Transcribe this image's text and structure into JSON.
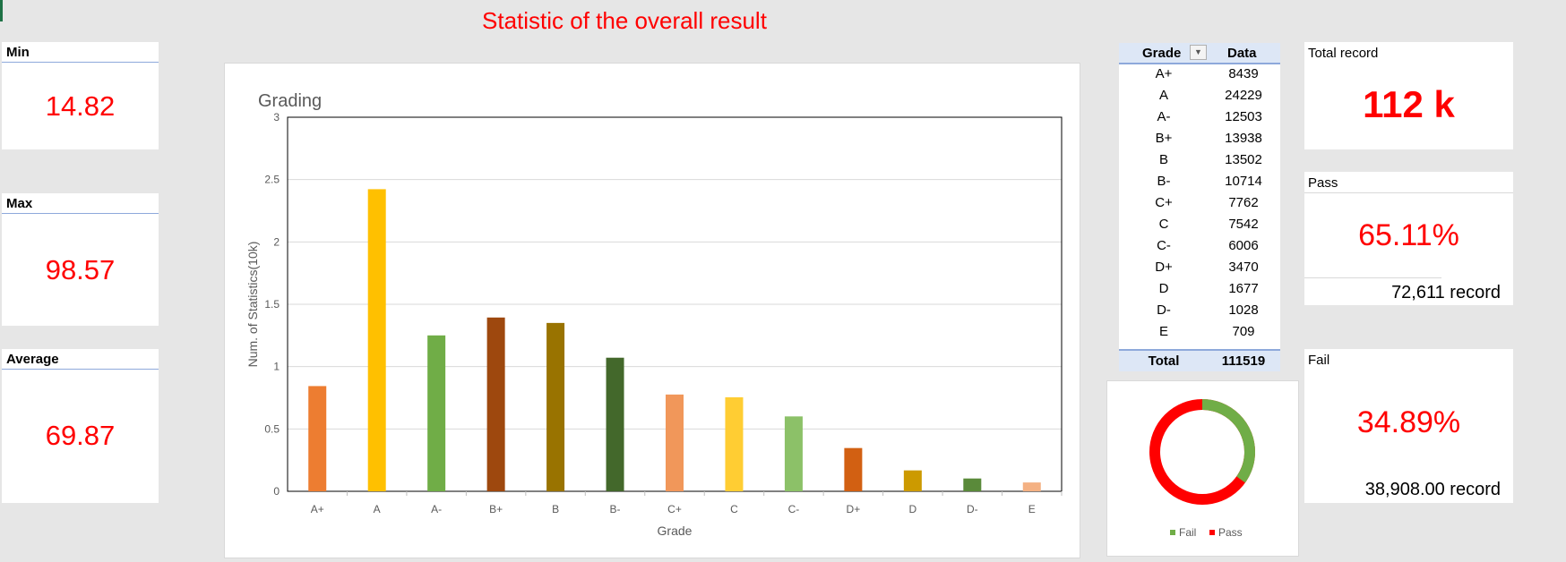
{
  "dashboard": {
    "title": "Statistic of the overall result"
  },
  "kpis": {
    "min": {
      "label": "Min",
      "value": "14.82"
    },
    "max": {
      "label": "Max",
      "value": "98.57"
    },
    "average": {
      "label": "Average",
      "value": "69.87"
    }
  },
  "chart_data": {
    "type": "bar",
    "title": "Grading",
    "xlabel": "Grade",
    "ylabel": "Num. of Statistics(10k)",
    "ylim": [
      0,
      3
    ],
    "yticks": [
      "0",
      "0.5",
      "1",
      "1.5",
      "2",
      "2.5",
      "3"
    ],
    "grid": true,
    "categories": [
      "A+",
      "A",
      "A-",
      "B+",
      "B",
      "B-",
      "C+",
      "C",
      "C-",
      "D+",
      "D",
      "D-",
      "E"
    ],
    "values": [
      0.8439,
      2.4229,
      1.2503,
      1.3938,
      1.3502,
      1.0714,
      0.7762,
      0.7542,
      0.6006,
      0.347,
      0.1677,
      0.1028,
      0.0709
    ],
    "colors": [
      "#ED7D31",
      "#FFC000",
      "#70AD47",
      "#9E480E",
      "#997300",
      "#43682B",
      "#F1975A",
      "#FFCD33",
      "#8CC168",
      "#D26012",
      "#CC9A00",
      "#5A8A3A",
      "#F4B183"
    ]
  },
  "grade_table": {
    "headers": {
      "grade": "Grade",
      "data": "Data"
    },
    "rows": [
      {
        "grade": "A+",
        "data": "8439"
      },
      {
        "grade": "A",
        "data": "24229"
      },
      {
        "grade": "A-",
        "data": "12503"
      },
      {
        "grade": "B+",
        "data": "13938"
      },
      {
        "grade": "B",
        "data": "13502"
      },
      {
        "grade": "B-",
        "data": "10714"
      },
      {
        "grade": "C+",
        "data": "7762"
      },
      {
        "grade": "C",
        "data": "7542"
      },
      {
        "grade": "C-",
        "data": "6006"
      },
      {
        "grade": "D+",
        "data": "3470"
      },
      {
        "grade": "D",
        "data": "1677"
      },
      {
        "grade": "D-",
        "data": "1028"
      },
      {
        "grade": "E",
        "data": "709"
      }
    ],
    "total": {
      "label": "Total",
      "value": "111519"
    },
    "filter_icon": "dropdown-arrow-icon"
  },
  "donut": {
    "fail_fraction": 0.3489,
    "pass_fraction": 0.6511,
    "fail_color": "#70AD47",
    "pass_color": "#FF0000",
    "legend": {
      "fail": "Fail",
      "pass": "Pass"
    }
  },
  "summary": {
    "total_record": {
      "label": "Total record",
      "value": "112 k"
    },
    "pass": {
      "label": "Pass",
      "value": "65.11%",
      "record": "72,611 record"
    },
    "fail": {
      "label": "Fail",
      "value": "34.89%",
      "record": "38,908.00 record"
    }
  }
}
